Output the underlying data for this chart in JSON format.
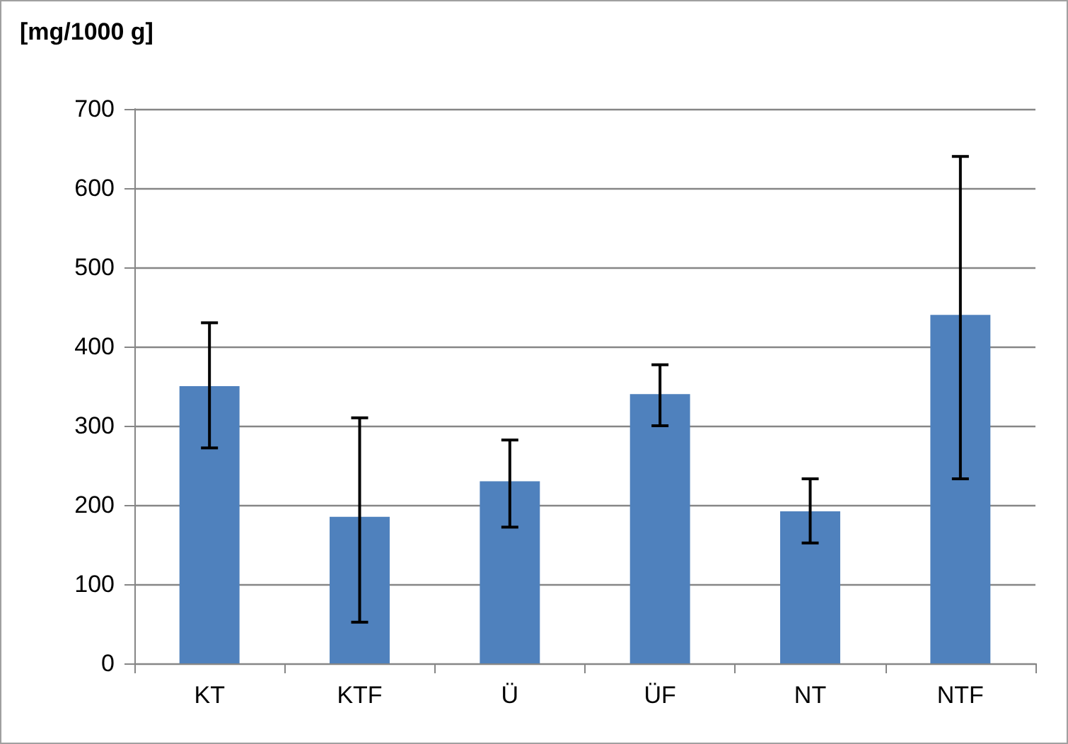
{
  "chart_data": {
    "type": "bar",
    "ylabel": "[mg/1000 g]",
    "categories": [
      "KT",
      "KTF",
      "Ü",
      "ÜF",
      "NT",
      "NTF"
    ],
    "values": [
      350,
      185,
      230,
      340,
      192,
      440
    ],
    "errors": [
      [
        272,
        430
      ],
      [
        52,
        310
      ],
      [
        172,
        282
      ],
      [
        300,
        377
      ],
      [
        152,
        233
      ],
      [
        233,
        640
      ]
    ],
    "color": "#4f81bd",
    "ylim": [
      0,
      700
    ],
    "yticks": [
      0,
      100,
      200,
      300,
      400,
      500,
      600,
      700
    ],
    "grid": "y"
  }
}
